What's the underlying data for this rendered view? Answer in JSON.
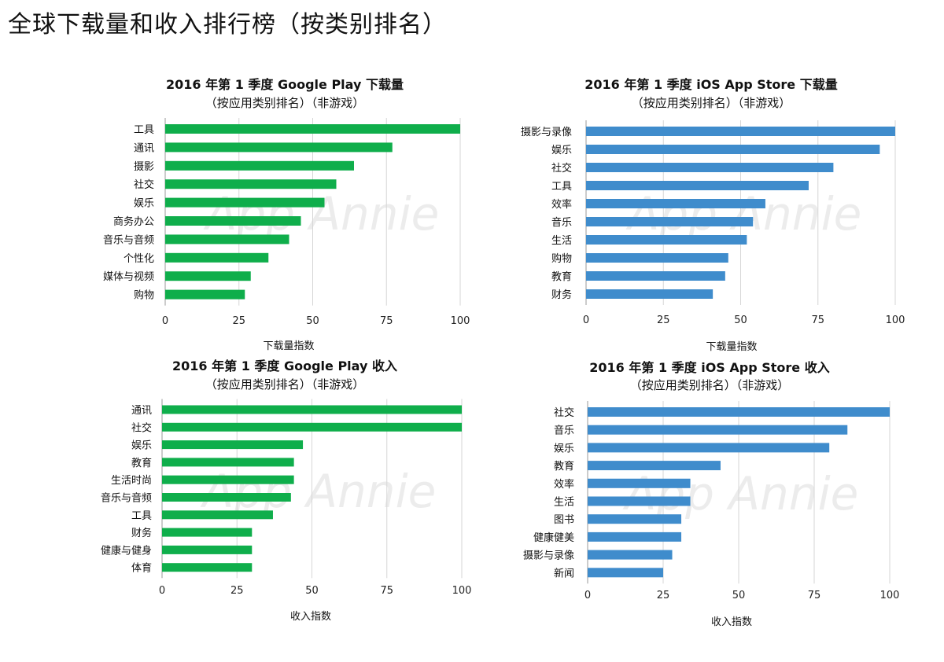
{
  "page": {
    "title": "全球下载量和收入排行榜（按类别排名）"
  },
  "colors": {
    "google_play": "#0fae4b",
    "ios": "#3f8ccc"
  },
  "watermark_text": "App Annie",
  "chart_data": [
    {
      "type": "bar",
      "orientation": "horizontal",
      "title": "2016 年第 1 季度 Google Play 下载量",
      "subtitle": "（按应用类别排名）（非游戏）",
      "categories": [
        "工具",
        "通讯",
        "摄影",
        "社交",
        "娱乐",
        "商务办公",
        "音乐与音频",
        "个性化",
        "媒体与视频",
        "购物"
      ],
      "values": [
        100,
        77,
        64,
        58,
        54,
        46,
        42,
        35,
        29,
        27
      ],
      "xlabel": "下载量指数",
      "xlim": [
        0,
        100
      ],
      "xticks": [
        0,
        25,
        50,
        75,
        100
      ],
      "grid": true,
      "color_key": "google_play"
    },
    {
      "type": "bar",
      "orientation": "horizontal",
      "title": "2016 年第 1 季度 iOS App Store 下载量",
      "subtitle": "（按应用类别排名）（非游戏）",
      "categories": [
        "摄影与录像",
        "娱乐",
        "社交",
        "工具",
        "效率",
        "音乐",
        "生活",
        "购物",
        "教育",
        "财务"
      ],
      "values": [
        100,
        95,
        80,
        72,
        58,
        54,
        52,
        46,
        45,
        41
      ],
      "xlabel": "下载量指数",
      "xlim": [
        0,
        100
      ],
      "xticks": [
        0,
        25,
        50,
        75,
        100
      ],
      "grid": true,
      "color_key": "ios"
    },
    {
      "type": "bar",
      "orientation": "horizontal",
      "title": "2016 年第 1 季度 Google Play 收入",
      "subtitle": "（按应用类别排名）（非游戏）",
      "categories": [
        "通讯",
        "社交",
        "娱乐",
        "教育",
        "生活时尚",
        "音乐与音频",
        "工具",
        "财务",
        "健康与健身",
        "体育"
      ],
      "values": [
        100,
        100,
        47,
        44,
        44,
        43,
        37,
        30,
        30,
        30
      ],
      "xlabel": "收入指数",
      "xlim": [
        0,
        100
      ],
      "xticks": [
        0,
        25,
        50,
        75,
        100
      ],
      "grid": true,
      "color_key": "google_play"
    },
    {
      "type": "bar",
      "orientation": "horizontal",
      "title": "2016 年第 1 季度 iOS App Store 收入",
      "subtitle": "（按应用类别排名）（非游戏）",
      "categories": [
        "社交",
        "音乐",
        "娱乐",
        "教育",
        "效率",
        "生活",
        "图书",
        "健康健美",
        "摄影与录像",
        "新闻"
      ],
      "values": [
        100,
        86,
        80,
        44,
        34,
        34,
        31,
        31,
        28,
        25
      ],
      "xlabel": "收入指数",
      "xlim": [
        0,
        100
      ],
      "xticks": [
        0,
        25,
        50,
        75,
        100
      ],
      "grid": true,
      "color_key": "ios"
    }
  ]
}
